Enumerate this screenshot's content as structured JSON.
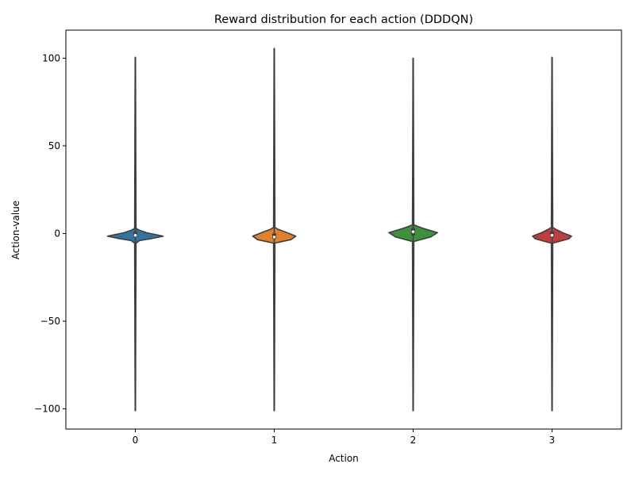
{
  "chart_data": {
    "type": "violin",
    "title": "Reward distribution for each action (DDDQN)",
    "xlabel": "Action",
    "ylabel": "Action-value",
    "categories": [
      "0",
      "1",
      "2",
      "3"
    ],
    "ylim": [
      -111.5,
      116
    ],
    "yticks": [
      -100,
      -50,
      0,
      50,
      100
    ],
    "ytick_labels": [
      "−100",
      "−50",
      "0",
      "50",
      "100"
    ],
    "grid": false,
    "legend": "none",
    "series": [
      {
        "category": "0",
        "color": "#3274a1",
        "min": -101,
        "max": 100.5,
        "q1": -2,
        "median": -1,
        "q3": 1,
        "whisker_low": -7,
        "whisker_high": 5,
        "profile": [
          {
            "y": -5.5,
            "half_width": 0.01
          },
          {
            "y": -4,
            "half_width": 0.06
          },
          {
            "y": -3,
            "half_width": 0.22
          },
          {
            "y": -1.5,
            "half_width": 0.4
          },
          {
            "y": 0.5,
            "half_width": 0.16
          },
          {
            "y": 2,
            "half_width": 0.05
          },
          {
            "y": 3,
            "half_width": 0.01
          }
        ]
      },
      {
        "category": "1",
        "color": "#e1812c",
        "min": -101,
        "max": 105.5,
        "q1": -3,
        "median": -2,
        "q3": 0,
        "whisker_low": -8,
        "whisker_high": 8,
        "profile": [
          {
            "y": -5.5,
            "half_width": 0.01
          },
          {
            "y": -5,
            "half_width": 0.06
          },
          {
            "y": -3.5,
            "half_width": 0.24
          },
          {
            "y": -1.5,
            "half_width": 0.31
          },
          {
            "y": 1,
            "half_width": 0.15
          },
          {
            "y": 2.5,
            "half_width": 0.05
          },
          {
            "y": 3.5,
            "half_width": 0.01
          }
        ]
      },
      {
        "category": "2",
        "color": "#3a923a",
        "min": -101,
        "max": 100,
        "q1": -1,
        "median": 1,
        "q3": 3,
        "whisker_low": -6,
        "whisker_high": 13,
        "profile": [
          {
            "y": -4.5,
            "half_width": 0.01
          },
          {
            "y": -4,
            "half_width": 0.06
          },
          {
            "y": -2,
            "half_width": 0.25
          },
          {
            "y": 0.5,
            "half_width": 0.35
          },
          {
            "y": 2.5,
            "half_width": 0.18
          },
          {
            "y": 4,
            "half_width": 0.07
          },
          {
            "y": 5,
            "half_width": 0.01
          }
        ]
      },
      {
        "category": "3",
        "color": "#c03d3e",
        "min": -101,
        "max": 100.5,
        "q1": -2,
        "median": -1,
        "q3": 1,
        "whisker_low": -7,
        "whisker_high": 12,
        "profile": [
          {
            "y": -5.5,
            "half_width": 0.01
          },
          {
            "y": -5,
            "half_width": 0.06
          },
          {
            "y": -3,
            "half_width": 0.24
          },
          {
            "y": -1.5,
            "half_width": 0.28
          },
          {
            "y": 0.5,
            "half_width": 0.15
          },
          {
            "y": 2.5,
            "half_width": 0.05
          },
          {
            "y": 3.5,
            "half_width": 0.01
          }
        ]
      }
    ]
  }
}
